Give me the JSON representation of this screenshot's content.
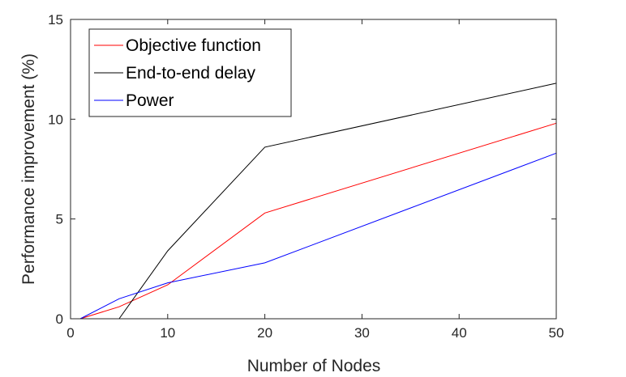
{
  "chart_data": {
    "type": "line",
    "xlabel": "Number of Nodes",
    "ylabel": "Performance improvement (%)",
    "xlim": [
      0,
      50
    ],
    "ylim": [
      0,
      15
    ],
    "xticks": [
      "0",
      "10",
      "20",
      "30",
      "40",
      "50"
    ],
    "yticks": [
      "0",
      "5",
      "10",
      "15"
    ],
    "grid": false,
    "legend_position": "top-left",
    "series": [
      {
        "name": "Objective function",
        "color": "#ff0000",
        "x": [
          1,
          5,
          10,
          20,
          50
        ],
        "y": [
          0,
          0.6,
          1.7,
          5.3,
          9.8
        ]
      },
      {
        "name": "End-to-end delay",
        "color": "#000000",
        "x": [
          5,
          10,
          20,
          50
        ],
        "y": [
          0,
          3.4,
          8.6,
          11.8
        ]
      },
      {
        "name": "Power",
        "color": "#0000ff",
        "x": [
          1,
          5,
          10,
          20,
          50
        ],
        "y": [
          0,
          1.0,
          1.8,
          2.8,
          8.3
        ]
      }
    ]
  }
}
